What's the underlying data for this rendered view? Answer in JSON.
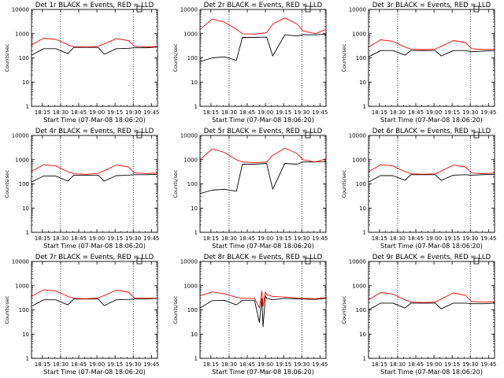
{
  "figure": {
    "xlabel": "Start Time (07-Mar-08 18:06:20)",
    "ylabel": "Counts/sec",
    "x_ticks": [
      "18:15",
      "18:30",
      "18:45",
      "19:00",
      "19:15",
      "19:30",
      "19:45"
    ],
    "y_ticks": [
      "1",
      "10",
      "100",
      "1000",
      "10000"
    ],
    "colors": {
      "events": "#000000",
      "lld": "#ff0000",
      "axes": "#000000"
    }
  },
  "chart_data": [
    {
      "type": "line",
      "title": "Det 1r BLACK = Events, RED = LLD",
      "x_unit": "minutes after 18:06:20",
      "xlim": [
        0,
        104
      ],
      "ylim": [
        1,
        10000
      ],
      "yscale": "log",
      "grid": false,
      "x": [
        0,
        10,
        20,
        30,
        35,
        45,
        55,
        60,
        70,
        80,
        85,
        95,
        104
      ],
      "series": [
        {
          "name": "Events",
          "color": "#000000",
          "values": [
            130,
            240,
            240,
            150,
            270,
            270,
            270,
            140,
            240,
            250,
            260,
            260,
            280
          ]
        },
        {
          "name": "LLD",
          "color": "#ff0000",
          "values": [
            350,
            650,
            580,
            350,
            290,
            280,
            300,
            380,
            620,
            520,
            300,
            280,
            300
          ]
        }
      ]
    },
    {
      "type": "line",
      "title": "Det 2r BLACK = Events, RED = LLD",
      "x_unit": "minutes after 18:06:20",
      "xlim": [
        0,
        104
      ],
      "ylim": [
        1,
        10000
      ],
      "yscale": "log",
      "grid": false,
      "x": [
        0,
        10,
        20,
        30,
        35,
        45,
        55,
        60,
        70,
        80,
        85,
        95,
        104
      ],
      "series": [
        {
          "name": "Events",
          "color": "#000000",
          "values": [
            70,
            100,
            110,
            80,
            700,
            700,
            720,
            120,
            900,
            800,
            900,
            900,
            950
          ]
        },
        {
          "name": "LLD",
          "color": "#ff0000",
          "values": [
            1500,
            4000,
            3000,
            1500,
            1000,
            950,
            1100,
            2500,
            4500,
            2500,
            1300,
            1000,
            1500
          ]
        }
      ]
    },
    {
      "type": "line",
      "title": "Det 3r BLACK = Events, RED = LLD",
      "x_unit": "minutes after 18:06:20",
      "xlim": [
        0,
        104
      ],
      "ylim": [
        1,
        10000
      ],
      "yscale": "log",
      "grid": false,
      "x": [
        0,
        10,
        20,
        30,
        35,
        45,
        55,
        60,
        70,
        80,
        85,
        95,
        104
      ],
      "series": [
        {
          "name": "Events",
          "color": "#000000",
          "values": [
            110,
            200,
            200,
            130,
            200,
            200,
            200,
            120,
            200,
            200,
            180,
            190,
            200
          ]
        },
        {
          "name": "LLD",
          "color": "#ff0000",
          "values": [
            280,
            560,
            480,
            280,
            230,
            220,
            230,
            300,
            520,
            430,
            240,
            220,
            230
          ]
        }
      ]
    },
    {
      "type": "line",
      "title": "Det 4r BLACK = Events, RED = LLD",
      "x_unit": "minutes after 18:06:20",
      "xlim": [
        0,
        104
      ],
      "ylim": [
        1,
        10000
      ],
      "yscale": "log",
      "grid": false,
      "x": [
        0,
        10,
        20,
        30,
        35,
        45,
        55,
        60,
        70,
        80,
        85,
        95,
        104
      ],
      "series": [
        {
          "name": "Events",
          "color": "#000000",
          "values": [
            120,
            210,
            210,
            130,
            230,
            230,
            230,
            130,
            220,
            230,
            240,
            240,
            250
          ]
        },
        {
          "name": "LLD",
          "color": "#ff0000",
          "values": [
            330,
            620,
            550,
            320,
            260,
            250,
            270,
            350,
            600,
            500,
            280,
            270,
            280
          ]
        }
      ]
    },
    {
      "type": "line",
      "title": "Det 5r BLACK = Events, RED = LLD",
      "x_unit": "minutes after 18:06:20",
      "xlim": [
        0,
        104
      ],
      "ylim": [
        1,
        10000
      ],
      "yscale": "log",
      "grid": false,
      "x": [
        0,
        10,
        20,
        30,
        35,
        45,
        55,
        60,
        70,
        80,
        85,
        95,
        104
      ],
      "series": [
        {
          "name": "Events",
          "color": "#000000",
          "values": [
            40,
            55,
            60,
            50,
            650,
            650,
            700,
            60,
            700,
            650,
            800,
            800,
            850
          ]
        },
        {
          "name": "LLD",
          "color": "#ff0000",
          "values": [
            1000,
            2800,
            2000,
            1000,
            800,
            750,
            800,
            1500,
            3000,
            1800,
            1000,
            800,
            1100
          ]
        }
      ]
    },
    {
      "type": "line",
      "title": "Det 6r BLACK = Events, RED = LLD",
      "x_unit": "minutes after 18:06:20",
      "xlim": [
        0,
        104
      ],
      "ylim": [
        1,
        10000
      ],
      "yscale": "log",
      "grid": false,
      "x": [
        0,
        10,
        20,
        30,
        35,
        45,
        55,
        60,
        70,
        80,
        85,
        95,
        104
      ],
      "series": [
        {
          "name": "Events",
          "color": "#000000",
          "values": [
            120,
            220,
            220,
            140,
            240,
            240,
            240,
            140,
            230,
            240,
            230,
            240,
            250
          ]
        },
        {
          "name": "LLD",
          "color": "#ff0000",
          "values": [
            320,
            620,
            550,
            320,
            260,
            250,
            260,
            340,
            600,
            500,
            280,
            260,
            280
          ]
        }
      ]
    },
    {
      "type": "line",
      "title": "Det 7r BLACK = Events, RED = LLD",
      "x_unit": "minutes after 18:06:20",
      "xlim": [
        0,
        104
      ],
      "ylim": [
        1,
        10000
      ],
      "yscale": "log",
      "grid": false,
      "x": [
        0,
        10,
        20,
        30,
        35,
        45,
        55,
        60,
        70,
        80,
        85,
        95,
        104
      ],
      "series": [
        {
          "name": "Events",
          "color": "#000000",
          "values": [
            140,
            260,
            260,
            160,
            280,
            280,
            280,
            150,
            260,
            270,
            280,
            280,
            300
          ]
        },
        {
          "name": "LLD",
          "color": "#ff0000",
          "values": [
            360,
            680,
            600,
            360,
            300,
            290,
            310,
            390,
            650,
            540,
            310,
            300,
            310
          ]
        }
      ]
    },
    {
      "type": "line",
      "title": "Det 8r BLACK = Events, RED = LLD",
      "x_unit": "minutes after 18:06:20",
      "xlim": [
        0,
        104
      ],
      "ylim": [
        1,
        10000
      ],
      "yscale": "log",
      "grid": false,
      "x": [
        0,
        10,
        20,
        30,
        35,
        45,
        49,
        51,
        52,
        54,
        55,
        60,
        70,
        80,
        85,
        95,
        104
      ],
      "series": [
        {
          "name": "Events",
          "color": "#000000",
          "values": [
            120,
            240,
            250,
            160,
            250,
            250,
            30,
            300,
            20,
            380,
            300,
            260,
            300,
            280,
            280,
            270,
            300
          ]
        },
        {
          "name": "LLD",
          "color": "#ff0000",
          "values": [
            380,
            550,
            460,
            330,
            300,
            300,
            120,
            600,
            140,
            550,
            420,
            360,
            340,
            310,
            300,
            290,
            320
          ]
        }
      ]
    },
    {
      "type": "line",
      "title": "Det 9r BLACK = Events, RED = LLD",
      "x_unit": "minutes after 18:06:20",
      "xlim": [
        0,
        104
      ],
      "ylim": [
        1,
        10000
      ],
      "yscale": "log",
      "grid": false,
      "x": [
        0,
        10,
        20,
        30,
        35,
        45,
        55,
        60,
        70,
        80,
        85,
        95,
        104
      ],
      "series": [
        {
          "name": "Events",
          "color": "#000000",
          "values": [
            100,
            190,
            190,
            120,
            190,
            190,
            190,
            110,
            190,
            190,
            180,
            180,
            190
          ]
        },
        {
          "name": "LLD",
          "color": "#ff0000",
          "values": [
            260,
            520,
            450,
            260,
            210,
            200,
            210,
            280,
            500,
            400,
            220,
            210,
            220
          ]
        }
      ]
    }
  ]
}
